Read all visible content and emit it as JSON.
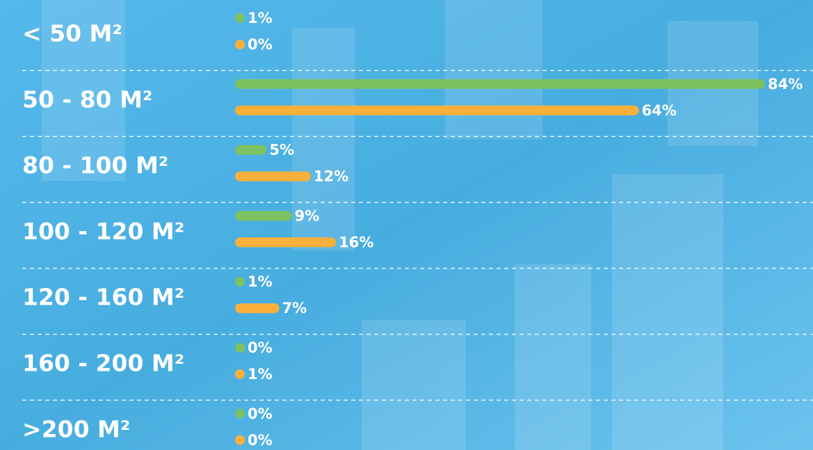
{
  "chart_data": {
    "type": "bar",
    "orientation": "horizontal",
    "categories": [
      "< 50 M²",
      "50 - 80 M²",
      "80 - 100 M²",
      "100 - 120 M²",
      "120 - 160 M²",
      "160 - 200 M²",
      ">200 M²"
    ],
    "series": [
      {
        "color": "#7dc262",
        "values": [
          1,
          84,
          5,
          9,
          1,
          0,
          0
        ],
        "value_labels": [
          "1%",
          "84%",
          "5%",
          "9%",
          "1%",
          "0%",
          "0%"
        ]
      },
      {
        "color": "#fbb03b",
        "values": [
          0,
          64,
          12,
          16,
          7,
          1,
          0
        ],
        "value_labels": [
          "0%",
          "64%",
          "12%",
          "16%",
          "7%",
          "1%",
          "0%"
        ]
      }
    ]
  }
}
